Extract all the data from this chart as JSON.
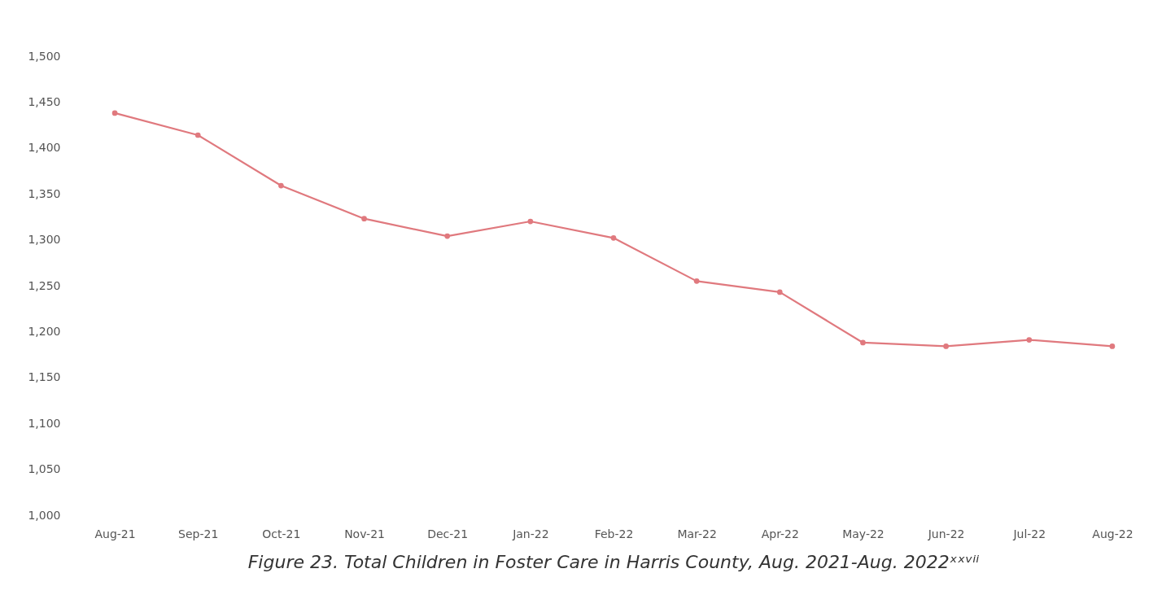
{
  "chart_data": {
    "type": "line",
    "title": "Figure 23.  Total Children in Foster Care in Harris County, Aug. 2021-Aug. 2022ˣˣᵛⁱⁱ",
    "categories": [
      "Aug-21",
      "Sep-21",
      "Oct-21",
      "Nov-21",
      "Dec-21",
      "Jan-22",
      "Feb-22",
      "Mar-22",
      "Apr-22",
      "May-22",
      "Jun-22",
      "Jul-22",
      "Aug-22"
    ],
    "series": [
      {
        "color": "#e0797e",
        "values": [
          1438,
          1414,
          1359,
          1323,
          1304,
          1320,
          1302,
          1255,
          1243,
          1188,
          1184,
          1191,
          1184
        ]
      }
    ],
    "ylim": [
      1000,
      1500
    ],
    "yticks": [
      {
        "value": 1000,
        "label": "1,000"
      },
      {
        "value": 1050,
        "label": "1,050"
      },
      {
        "value": 1100,
        "label": "1,100"
      },
      {
        "value": 1150,
        "label": "1,150"
      },
      {
        "value": 1200,
        "label": "1,200"
      },
      {
        "value": 1250,
        "label": "1,250"
      },
      {
        "value": 1300,
        "label": "1,300"
      },
      {
        "value": 1350,
        "label": "1,350"
      },
      {
        "value": 1400,
        "label": "1,400"
      },
      {
        "value": 1450,
        "label": "1,450"
      },
      {
        "value": 1500,
        "label": "1,500"
      }
    ],
    "marker": "circle",
    "line_style": "solid"
  }
}
